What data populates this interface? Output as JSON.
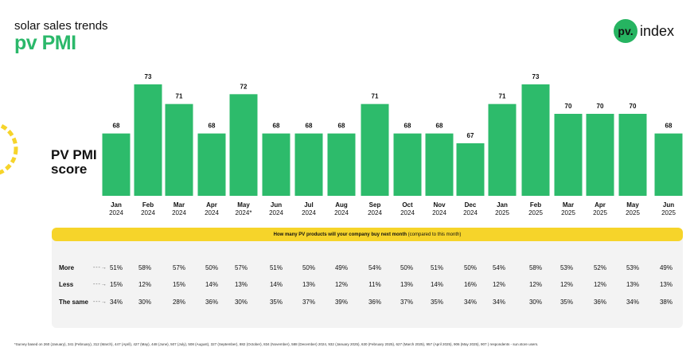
{
  "header": {
    "subtitle": "solar sales trends",
    "title": "pv PMI",
    "logo_badge": "pv.",
    "logo_text": "index"
  },
  "score_label_line1": "PV PMI",
  "score_label_line2": "score",
  "colors": {
    "bar": "#2dbb6b",
    "accent_yellow": "#f6d42a",
    "panel": "#f3f3f3"
  },
  "chart_data": {
    "type": "bar",
    "categories": [
      {
        "month": "Jan",
        "year": "2024"
      },
      {
        "month": "Feb",
        "year": "2024"
      },
      {
        "month": "Mar",
        "year": "2024"
      },
      {
        "month": "Apr",
        "year": "2024"
      },
      {
        "month": "May",
        "year": "2024*"
      },
      {
        "month": "Jun",
        "year": "2024"
      },
      {
        "month": "Jul",
        "year": "2024"
      },
      {
        "month": "Aug",
        "year": "2024"
      },
      {
        "month": "Sep",
        "year": "2024"
      },
      {
        "month": "Oct",
        "year": "2024"
      },
      {
        "month": "Nov",
        "year": "2024"
      },
      {
        "month": "Dec",
        "year": "2024"
      },
      {
        "month": "Jan",
        "year": "2025"
      },
      {
        "month": "Feb",
        "year": "2025"
      },
      {
        "month": "Mar",
        "year": "2025"
      },
      {
        "month": "Apr",
        "year": "2025"
      },
      {
        "month": "May",
        "year": "2025"
      },
      {
        "month": "Jun",
        "year": "2025"
      }
    ],
    "values": [
      68,
      73,
      71,
      68,
      72,
      68,
      68,
      68,
      71,
      68,
      68,
      67,
      71,
      73,
      70,
      70,
      70,
      68
    ],
    "title": "PV PMI score",
    "grid": false
  },
  "survey": {
    "question_bold": "How many PV products will your company buy next month",
    "question_rest": "(compared to this month)",
    "rows": [
      {
        "label": "More",
        "values": [
          "51%",
          "58%",
          "57%",
          "50%",
          "57%",
          "51%",
          "50%",
          "49%",
          "54%",
          "50%",
          "51%",
          "50%",
          "54%",
          "58%",
          "53%",
          "52%",
          "53%",
          "49%"
        ]
      },
      {
        "label": "Less",
        "values": [
          "15%",
          "12%",
          "15%",
          "14%",
          "13%",
          "14%",
          "13%",
          "12%",
          "11%",
          "13%",
          "14%",
          "16%",
          "12%",
          "12%",
          "12%",
          "12%",
          "13%",
          "13%"
        ]
      },
      {
        "label": "The same",
        "values": [
          "34%",
          "30%",
          "28%",
          "36%",
          "30%",
          "35%",
          "37%",
          "39%",
          "36%",
          "37%",
          "35%",
          "34%",
          "34%",
          "30%",
          "35%",
          "36%",
          "34%",
          "38%"
        ]
      }
    ]
  },
  "footnote": "*Survey based on 260 (January), 341 (February), 312 (March), 447 (April), 427 (May), 448 (June), 507 (July), 508 (August), 327 (September), 882 (October), 834 (November), 588 (December) 2024, 932 (January 2025), 630 (February 2025), 627 (March 2025), 957 (April 2025), 906 (May 2025), 907 ) respondents - sun.store users."
}
